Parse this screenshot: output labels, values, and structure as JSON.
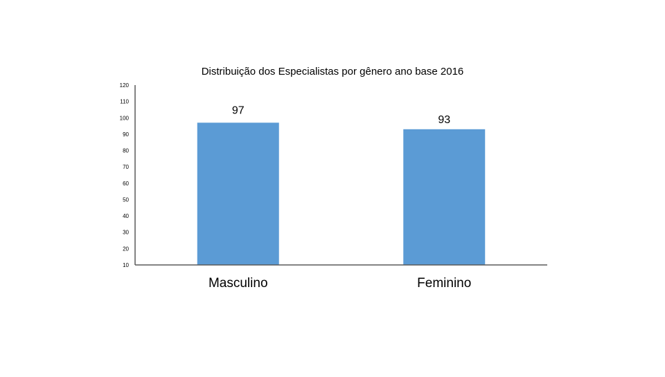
{
  "slide": {
    "background": "#ffffff"
  },
  "chart_data": {
    "type": "bar",
    "title": "Distribuição dos Especialistas por gênero ano base 2016",
    "xlabel": "",
    "ylabel": "",
    "categories": [
      "Masculino",
      "Feminino"
    ],
    "values": [
      97,
      93
    ],
    "data_labels": [
      "97",
      "93"
    ],
    "ylim": [
      10,
      120
    ],
    "yticks": [
      120,
      110,
      100,
      90,
      80,
      70,
      60,
      50,
      40,
      30,
      20,
      10
    ],
    "grid": false,
    "legend": "none",
    "bar_color": "#5b9bd5",
    "axis_color": "#595959",
    "text_color": "#000000"
  }
}
